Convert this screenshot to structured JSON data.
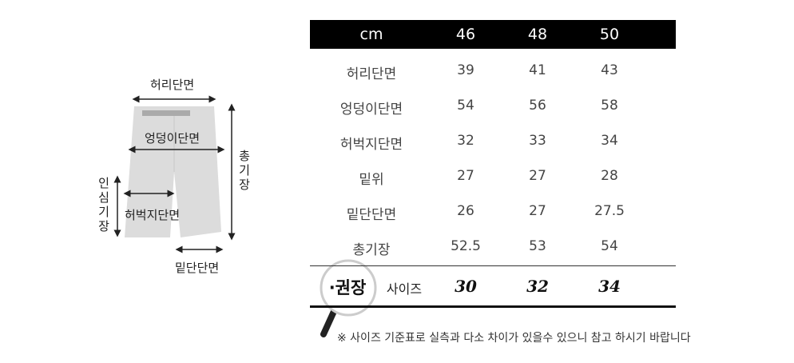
{
  "diagram": {
    "waist": "허리단면",
    "hip": "엉덩이단면",
    "thigh": "허벅지단면",
    "hem": "밑단단면",
    "total_length": "총기장",
    "inseam": "인심기장"
  },
  "table": {
    "headers": [
      "cm",
      "46",
      "48",
      "50"
    ],
    "rows": [
      {
        "label": "허리단면",
        "values": [
          "39",
          "41",
          "43"
        ]
      },
      {
        "label": "엉덩이단면",
        "values": [
          "54",
          "56",
          "58"
        ]
      },
      {
        "label": "허벅지단면",
        "values": [
          "32",
          "33",
          "34"
        ]
      },
      {
        "label": "밑위",
        "values": [
          "27",
          "27",
          "28"
        ]
      },
      {
        "label": "밑단단면",
        "values": [
          "26",
          "27",
          "27.5"
        ]
      },
      {
        "label": "총기장",
        "values": [
          "52.5",
          "53",
          "54"
        ]
      }
    ],
    "recommended": {
      "badge": "·권장",
      "label": "사이즈",
      "values": [
        "30",
        "32",
        "34"
      ]
    }
  },
  "note": "※ 사이즈 기준표로 실측과 다소 차이가 있을수 있으니 참고 하시기 바랍니다",
  "colors": {
    "header_bg": "#000000",
    "pants": "#d8d8d8"
  }
}
